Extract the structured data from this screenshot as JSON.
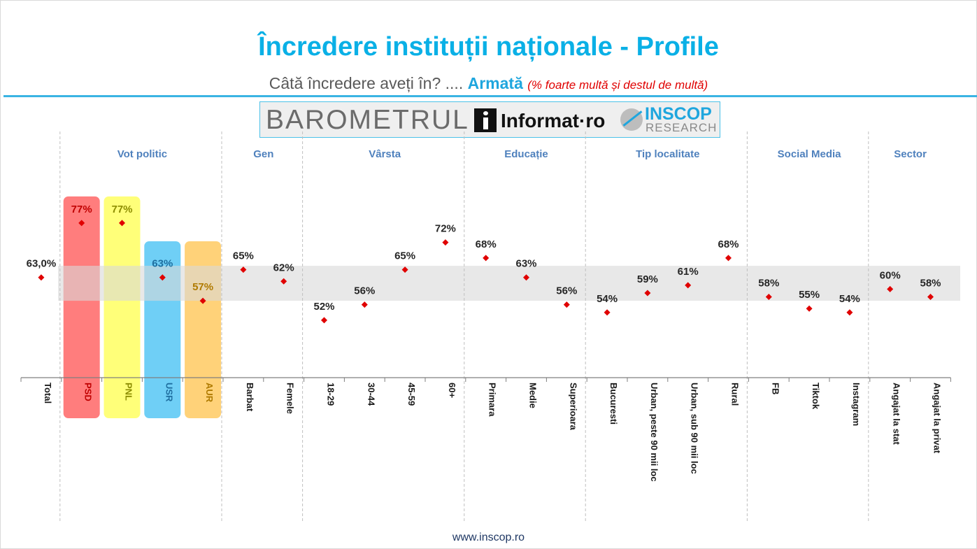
{
  "header": {
    "title": "Încredere instituții naționale - Profile",
    "subtitle_question": "Câtă încredere aveți în? ....",
    "subtitle_institution": "Armată",
    "subtitle_note": "(% foarte multă și destul de multă)"
  },
  "banner": {
    "barometer": "BAROMETRUL",
    "informat": "Informat·ro",
    "inscop": "INSCOP",
    "research": "RESEARCH"
  },
  "footer": {
    "url": "www.inscop.ro"
  },
  "colors": {
    "title": "#0ab0e6",
    "marker": "#e00000",
    "band": "#d9d9d9",
    "psd": "#ff6b6b",
    "pnl": "#ffff66",
    "usr": "#5bc8f5",
    "aur": "#ffcc66",
    "group_label": "#4f81bd"
  },
  "chart_data": {
    "type": "scatter",
    "ylim": [
      0,
      100
    ],
    "reference_band": [
      57,
      66
    ],
    "groups": [
      {
        "label": "",
        "categories": [
          "Total"
        ]
      },
      {
        "label": "Vot politic",
        "categories": [
          "PSD",
          "PNL",
          "USR",
          "AUR"
        ]
      },
      {
        "label": "Gen",
        "categories": [
          "Barbat",
          "Femele"
        ]
      },
      {
        "label": "Vârsta",
        "categories": [
          "18-29",
          "30-44",
          "45-59",
          "60+"
        ]
      },
      {
        "label": "Educație",
        "categories": [
          "Primara",
          "Medie",
          "Superioara"
        ]
      },
      {
        "label": "Tip localitate",
        "categories": [
          "Bucuresti",
          "Urban, peste 90 mii loc",
          "Urban, sub 90 mii loc",
          "Rural"
        ]
      },
      {
        "label": "Social Media",
        "categories": [
          "FB",
          "Tiktok",
          "Instagram"
        ]
      },
      {
        "label": "Sector",
        "categories": [
          "Angajat la stat",
          "Angajat la privat"
        ]
      }
    ],
    "categories": [
      "Total",
      "PSD",
      "PNL",
      "USR",
      "AUR",
      "Barbat",
      "Femele",
      "18-29",
      "30-44",
      "45-59",
      "60+",
      "Primara",
      "Medie",
      "Superioara",
      "Bucuresti",
      "Urban, peste 90 mii loc",
      "Urban, sub 90 mii loc",
      "Rural",
      "FB",
      "Tiktok",
      "Instagram",
      "Angajat la stat",
      "Angajat la privat"
    ],
    "values": [
      63,
      77,
      77,
      63,
      57,
      65,
      62,
      52,
      56,
      65,
      72,
      68,
      63,
      56,
      54,
      59,
      61,
      68,
      58,
      55,
      54,
      60,
      58
    ],
    "labels": [
      "63,0%",
      "77%",
      "77%",
      "63%",
      "57%",
      "65%",
      "62%",
      "52%",
      "56%",
      "65%",
      "72%",
      "68%",
      "63%",
      "56%",
      "54%",
      "59%",
      "61%",
      "68%",
      "58%",
      "55%",
      "54%",
      "60%",
      "58%"
    ],
    "highlights": [
      {
        "category": "PSD",
        "color": "#ff6b6b",
        "text_color": "#c00000"
      },
      {
        "category": "PNL",
        "color": "#ffff66",
        "text_color": "#8c8c00"
      },
      {
        "category": "USR",
        "color": "#5bc8f5",
        "text_color": "#1f6fa0"
      },
      {
        "category": "AUR",
        "color": "#ffcc66",
        "text_color": "#b07a00"
      }
    ]
  }
}
